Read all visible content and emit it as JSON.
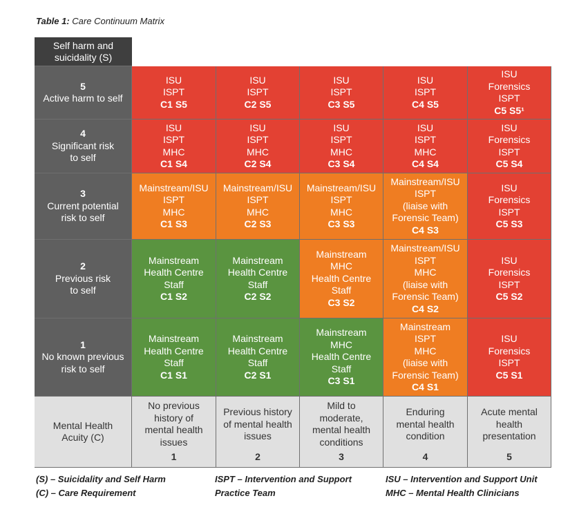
{
  "caption": {
    "prefix": "Table 1:",
    "title": "Care Continuum Matrix"
  },
  "corner_header": [
    "Self harm and",
    "suicidality (S)"
  ],
  "rows": [
    {
      "severity": "5",
      "label": [
        "Active harm to self"
      ],
      "cells": [
        {
          "color": "red",
          "lines": [
            "ISU",
            "ISPT"
          ],
          "code": "C1 S5"
        },
        {
          "color": "red",
          "lines": [
            "ISU",
            "ISPT"
          ],
          "code": "C2 S5"
        },
        {
          "color": "red",
          "lines": [
            "ISU",
            "ISPT"
          ],
          "code": "C3 S5"
        },
        {
          "color": "red",
          "lines": [
            "ISU",
            "ISPT"
          ],
          "code": "C4 S5"
        },
        {
          "color": "red",
          "lines": [
            "ISU",
            "Forensics",
            "ISPT"
          ],
          "code": "C5 S5¹"
        }
      ]
    },
    {
      "severity": "4",
      "label": [
        "Significant risk",
        "to self"
      ],
      "cells": [
        {
          "color": "red",
          "lines": [
            "ISU",
            "ISPT",
            "MHC"
          ],
          "code": "C1 S4"
        },
        {
          "color": "red",
          "lines": [
            "ISU",
            "ISPT",
            "MHC"
          ],
          "code": "C2 S4"
        },
        {
          "color": "red",
          "lines": [
            "ISU",
            "ISPT",
            "MHC"
          ],
          "code": "C3 S4"
        },
        {
          "color": "red",
          "lines": [
            "ISU",
            "ISPT",
            "MHC"
          ],
          "code": "C4 S4"
        },
        {
          "color": "red",
          "lines": [
            "ISU",
            "Forensics",
            "ISPT"
          ],
          "code": "C5 S4"
        }
      ]
    },
    {
      "severity": "3",
      "label": [
        "Current potential",
        "risk to self"
      ],
      "cells": [
        {
          "color": "orange",
          "lines": [
            "Mainstream/ISU",
            "ISPT",
            "MHC"
          ],
          "code": "C1 S3"
        },
        {
          "color": "orange",
          "lines": [
            "Mainstream/ISU",
            "ISPT",
            "MHC"
          ],
          "code": "C2 S3"
        },
        {
          "color": "orange",
          "lines": [
            "Mainstream/ISU",
            "ISPT",
            "MHC"
          ],
          "code": "C3 S3"
        },
        {
          "color": "orange",
          "lines": [
            "Mainstream/ISU",
            "ISPT",
            "(liaise with",
            "Forensic Team)"
          ],
          "code": "C4 S3"
        },
        {
          "color": "red",
          "lines": [
            "ISU",
            "Forensics",
            "ISPT"
          ],
          "code": "C5 S3"
        }
      ]
    },
    {
      "severity": "2",
      "label": [
        "Previous risk",
        "to self"
      ],
      "cells": [
        {
          "color": "green",
          "lines": [
            "Mainstream",
            "Health Centre",
            "Staff"
          ],
          "code": "C1 S2"
        },
        {
          "color": "green",
          "lines": [
            "Mainstream",
            "Health Centre",
            "Staff"
          ],
          "code": "C2 S2"
        },
        {
          "color": "orange",
          "lines": [
            "Mainstream",
            "MHC",
            "Health Centre",
            "Staff"
          ],
          "code": "C3 S2"
        },
        {
          "color": "orange",
          "lines": [
            "Mainstream/ISU",
            "ISPT",
            "MHC",
            "(liaise with",
            "Forensic Team)"
          ],
          "code": "C4 S2"
        },
        {
          "color": "red",
          "lines": [
            "ISU",
            "Forensics",
            "ISPT"
          ],
          "code": "C5 S2"
        }
      ]
    },
    {
      "severity": "1",
      "label": [
        "No known previous",
        "risk to self"
      ],
      "cells": [
        {
          "color": "green",
          "lines": [
            "Mainstream",
            "Health Centre",
            "Staff"
          ],
          "code": "C1 S1"
        },
        {
          "color": "green",
          "lines": [
            "Mainstream",
            "Health Centre",
            "Staff"
          ],
          "code": "C2 S1"
        },
        {
          "color": "green",
          "lines": [
            "Mainstream",
            "MHC",
            "Health Centre",
            "Staff"
          ],
          "code": "C3 S1"
        },
        {
          "color": "orange",
          "lines": [
            "Mainstream",
            "ISPT",
            "MHC",
            "(liaise with",
            "Forensic Team)"
          ],
          "code": "C4 S1"
        },
        {
          "color": "red",
          "lines": [
            "ISU",
            "Forensics",
            "ISPT"
          ],
          "code": "C5 S1"
        }
      ]
    }
  ],
  "footer": {
    "label": [
      "Mental Health",
      "Acuity (C)"
    ],
    "columns": [
      {
        "desc": [
          "No previous",
          "history of",
          "mental health",
          "issues"
        ],
        "num": "1"
      },
      {
        "desc": [
          "Previous history",
          "of mental health",
          "issues"
        ],
        "num": "2"
      },
      {
        "desc": [
          "Mild to",
          "moderate,",
          "mental health",
          "conditions"
        ],
        "num": "3"
      },
      {
        "desc": [
          "Enduring",
          "mental health",
          "condition"
        ],
        "num": "4"
      },
      {
        "desc": [
          "Acute mental",
          "health",
          "presentation"
        ],
        "num": "5"
      }
    ]
  },
  "legend": [
    [
      "(S) – Suicidality and Self Harm",
      "(C) – Care Requirement"
    ],
    [
      "ISPT – Intervention and Support",
      "Practice Team"
    ],
    [
      "ISU – Intervention and Support Unit",
      "MHC – Mental Health Clinicians"
    ]
  ],
  "colors": {
    "red": "#e34133",
    "orange": "#ef7d22",
    "green": "#5a9440",
    "row_header": "#5f5f5f",
    "corner": "#3f3f3f",
    "footer": "#e0e0e0"
  }
}
